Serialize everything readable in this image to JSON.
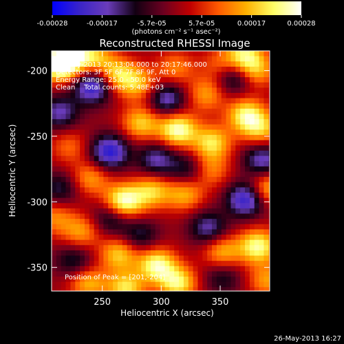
{
  "chart_data": {
    "type": "heatmap",
    "title": "Reconstructed RHESSI Image",
    "xlabel": "Heliocentric X (arcsec)",
    "ylabel": "Heliocentric Y (arcsec)",
    "xlim": [
      207,
      392
    ],
    "ylim": [
      -368,
      -185
    ],
    "xticks": [
      250,
      300,
      350
    ],
    "yticks": [
      -200,
      -250,
      -300,
      -350
    ],
    "colorbar": {
      "ticks": [
        "-0.00028",
        "-0.00017",
        "-5.7e-05",
        "5.7e-05",
        "0.00017",
        "0.00028"
      ],
      "unit_label": "(photons cm⁻² s⁻¹ asec⁻²)",
      "range": [
        -0.00028,
        0.00028
      ],
      "colors": [
        "#0000ff",
        "#3a24c8",
        "#6a3cba",
        "#120012",
        "#6a0020",
        "#c20000",
        "#ff5a00",
        "#ffb000",
        "#ffff66",
        "#ffffff"
      ]
    },
    "annotations": [
      "26-May-2013 20:13:04.000 to 20:17:46.000",
      "Detectors: 3F 5F 6F 7F 8F 9F, Att 0",
      "Energy Range: 25.0 - 50.0 keV",
      "Clean    Total counts: 5.48E+03"
    ],
    "peak_label": "Position of Peak = [201,-204]",
    "peak": [
      201,
      -204
    ],
    "grid": false,
    "hotspots_xy_value": [
      [
        214,
        -196,
        0.00026
      ],
      [
        222,
        -188,
        0.00022
      ],
      [
        243,
        -190,
        0.00016
      ],
      [
        262,
        -203,
        0.00018
      ],
      [
        280,
        -210,
        0.00016
      ],
      [
        312,
        -198,
        0.00012
      ],
      [
        338,
        -218,
        0.00014
      ],
      [
        350,
        -196,
        0.0001
      ],
      [
        370,
        -188,
        0.0002
      ],
      [
        380,
        -200,
        0.00016
      ],
      [
        283,
        -240,
        0.00018
      ],
      [
        314,
        -245,
        0.00026
      ],
      [
        343,
        -255,
        0.0002
      ],
      [
        372,
        -234,
        0.00022
      ],
      [
        385,
        -245,
        0.00016
      ],
      [
        222,
        -258,
        0.0001
      ],
      [
        240,
        -282,
        0.00014
      ],
      [
        268,
        -300,
        0.00028
      ],
      [
        292,
        -292,
        0.00018
      ],
      [
        320,
        -294,
        0.00016
      ],
      [
        342,
        -276,
        0.00012
      ],
      [
        390,
        -290,
        0.00018
      ],
      [
        232,
        -323,
        0.00014
      ],
      [
        264,
        -340,
        0.00018
      ],
      [
        296,
        -348,
        0.00024
      ],
      [
        314,
        -362,
        0.00022
      ],
      [
        352,
        -338,
        0.00016
      ],
      [
        382,
        -334,
        0.00024
      ],
      [
        238,
        -362,
        0.00016
      ],
      [
        270,
        -366,
        0.0002
      ],
      [
        390,
        -360,
        0.00014
      ],
      [
        210,
        -312,
        0.00012
      ]
    ],
    "coldspots_xy_value": [
      [
        242,
        -212,
        -0.00024
      ],
      [
        305,
        -222,
        -0.00018
      ],
      [
        362,
        -205,
        -0.00016
      ],
      [
        214,
        -232,
        -0.00016
      ],
      [
        256,
        -262,
        -0.00024
      ],
      [
        296,
        -268,
        -0.00016
      ],
      [
        386,
        -268,
        -0.00018
      ],
      [
        322,
        -276,
        -0.00012
      ],
      [
        372,
        -298,
        -0.00024
      ],
      [
        214,
        -290,
        -0.00012
      ],
      [
        340,
        -320,
        -0.00016
      ],
      [
        258,
        -312,
        -0.00014
      ],
      [
        226,
        -345,
        -0.00012
      ],
      [
        282,
        -326,
        -0.00012
      ],
      [
        352,
        -358,
        -0.0001
      ]
    ]
  },
  "footer": {
    "timestamp": "26-May-2013 16:27"
  }
}
